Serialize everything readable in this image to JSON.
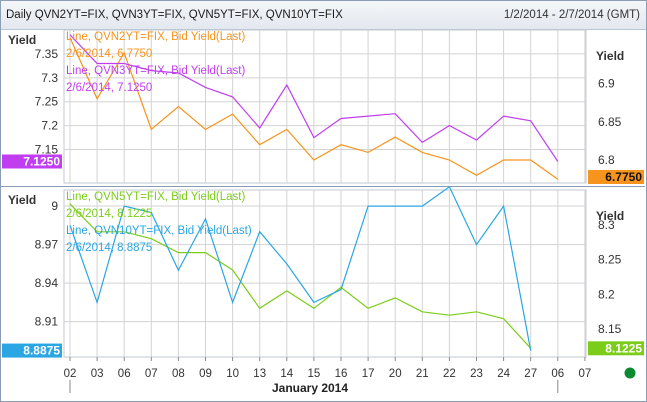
{
  "header": {
    "title": "Daily QVN2YT=FIX, QVN3YT=FIX, QVN5YT=FIX, QVN10YT=FIX",
    "range": "1/2/2014 - 2/7/2014 (GMT)"
  },
  "colors": {
    "orange": "#f7941d",
    "purple": "#c13ef0",
    "green": "#7ccd19",
    "blue": "#2aa6e3",
    "grid": "#d3d3d3",
    "indicator": "#0b8a33"
  },
  "chart_data": [
    {
      "type": "line",
      "panel": "top",
      "ylabel_left": "Yield",
      "ylabel_right": "Yield",
      "left_axis": {
        "ylim": [
          7.08,
          7.4
        ],
        "ticks": [
          7.35,
          7.3,
          7.25,
          7.2,
          7.15
        ],
        "tick_labels": [
          "7.35",
          "7.3",
          "7.25",
          "7.2",
          "7.15"
        ]
      },
      "right_axis": {
        "ylim": [
          6.77,
          6.97
        ],
        "ticks": [
          6.9,
          6.85,
          6.8
        ],
        "tick_labels": [
          "6.9",
          "6.85",
          "6.8"
        ]
      },
      "series": [
        {
          "name": "Line, QVN2YT=FIX, Bid Yield(Last)",
          "legend_value": "2/6/2014, 6.7750",
          "axis": "right",
          "color_key": "orange",
          "values": [
            6.96,
            6.88,
            6.94,
            6.84,
            6.87,
            6.84,
            6.86,
            6.82,
            6.84,
            6.8,
            6.82,
            6.81,
            6.83,
            6.81,
            6.8,
            6.78,
            6.8,
            6.8,
            6.775
          ]
        },
        {
          "name": "Line, QVN3YT=FIX, Bid Yield(Last)",
          "legend_value": "2/6/2014, 7.1250",
          "axis": "left",
          "color_key": "purple",
          "values": [
            7.39,
            7.33,
            7.33,
            7.315,
            7.31,
            7.28,
            7.26,
            7.195,
            7.285,
            7.175,
            7.215,
            7.22,
            7.225,
            7.165,
            7.2,
            7.17,
            7.22,
            7.21,
            7.125
          ]
        }
      ],
      "marker_left": "7.1250",
      "marker_right": "6.7750"
    },
    {
      "type": "line",
      "panel": "bottom",
      "ylabel_left": "Yield",
      "ylabel_right": "Yield",
      "left_axis": {
        "ylim": [
          8.8825,
          9.0125
        ],
        "ticks": [
          9.0,
          8.97,
          8.94,
          8.91
        ],
        "tick_labels": [
          "9",
          "8.97",
          "8.94",
          "8.91"
        ]
      },
      "right_axis": {
        "ylim": [
          8.11,
          8.35
        ],
        "ticks": [
          8.3,
          8.25,
          8.2,
          8.15
        ],
        "tick_labels": [
          "8.3",
          "8.25",
          "8.2",
          "8.15"
        ]
      },
      "series": [
        {
          "name": "Line, QVN5YT=FIX, Bid Yield(Last)",
          "legend_value": "2/6/2014, 8.1225",
          "axis": "right",
          "color_key": "green",
          "values": [
            8.33,
            8.29,
            8.29,
            8.28,
            8.26,
            8.26,
            8.235,
            8.18,
            8.205,
            8.18,
            8.21,
            8.18,
            8.195,
            8.175,
            8.17,
            8.175,
            8.165,
            8.1225
          ]
        },
        {
          "name": "Line, QVN10YT=FIX, Bid Yield(Last)",
          "legend_value": "2/6/2014, 8.8875",
          "axis": "left",
          "color_key": "blue",
          "values": [
            8.985,
            8.925,
            9.0,
            8.995,
            8.95,
            8.99,
            8.925,
            8.98,
            8.955,
            8.925,
            8.935,
            9.0,
            9.0,
            9.0,
            9.015,
            8.97,
            9.0,
            8.8875
          ]
        }
      ],
      "marker_left": "8.8875",
      "marker_right": "8.1225"
    }
  ],
  "x_axis": {
    "ticks": [
      "02",
      "03",
      "06",
      "07",
      "08",
      "09",
      "10",
      "13",
      "14",
      "15",
      "16",
      "17",
      "20",
      "21",
      "22",
      "23",
      "24",
      "27",
      "06",
      "07"
    ],
    "month_label": "January 2014"
  }
}
